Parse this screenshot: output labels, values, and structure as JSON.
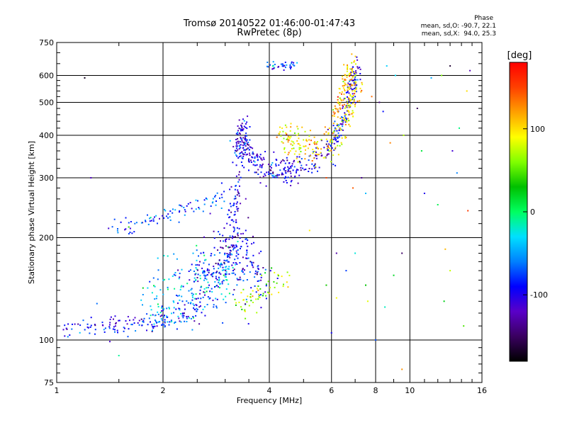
{
  "chart_data": {
    "type": "scatter",
    "title": "Tromsø 20140522 01:46:00-01:47:43",
    "subtitle": "RwPretec (8p)",
    "xlabel": "Frequency [MHz]",
    "ylabel": "Stationary phase Virtual Height [km]",
    "x_scale": "log",
    "y_scale": "log",
    "xlim": [
      1,
      16
    ],
    "ylim": [
      75,
      750
    ],
    "x_ticks": [
      1,
      2,
      4,
      6,
      8,
      10,
      16
    ],
    "y_ticks": [
      75,
      100,
      200,
      300,
      400,
      500,
      600,
      750
    ],
    "x_grid": [
      2,
      4,
      6,
      8,
      10
    ],
    "y_grid": [
      100,
      200,
      300,
      400,
      500,
      600
    ],
    "grid": true,
    "stats": {
      "header": "Phase",
      "o_mode": "mean, sd,O: -90.7, 22.1",
      "x_mode": "mean, sd,X:  94.0, 25.3"
    },
    "colorbar": {
      "label": "[deg]",
      "range": [
        -180,
        180
      ],
      "ticks": [
        100,
        0,
        -100
      ],
      "colors": [
        "#000000",
        "#3a0060",
        "#5a00c8",
        "#0000ff",
        "#0080ff",
        "#00e0ff",
        "#00ff60",
        "#00c000",
        "#80ff00",
        "#ffff00",
        "#ffa000",
        "#ff4000",
        "#ff0000"
      ]
    },
    "series": [
      {
        "type": "curve",
        "phase": -90,
        "points": [
          [
            1.0,
            108
          ],
          [
            1.1,
            109
          ],
          [
            1.2,
            110
          ],
          [
            1.3,
            109
          ],
          [
            1.4,
            110
          ],
          [
            1.5,
            111
          ],
          [
            1.6,
            110
          ],
          [
            1.7,
            112
          ],
          [
            1.8,
            112
          ],
          [
            1.9,
            113
          ],
          [
            2.0,
            114
          ],
          [
            2.1,
            116
          ],
          [
            2.2,
            119
          ],
          [
            2.3,
            121
          ],
          [
            2.4,
            123
          ],
          [
            2.5,
            126
          ]
        ],
        "count": 150,
        "spread": 0.035
      },
      {
        "type": "curve",
        "phase": -40,
        "points": [
          [
            1.8,
            128
          ],
          [
            2.0,
            132
          ],
          [
            2.2,
            138
          ],
          [
            2.4,
            143
          ],
          [
            2.6,
            148
          ],
          [
            2.8,
            152
          ],
          [
            3.0,
            158
          ],
          [
            3.2,
            165
          ]
        ],
        "count": 200,
        "spread": 0.12
      },
      {
        "type": "curve",
        "phase": -95,
        "points": [
          [
            2.4,
            140
          ],
          [
            2.6,
            147
          ],
          [
            2.8,
            158
          ],
          [
            3.0,
            172
          ],
          [
            3.2,
            188
          ],
          [
            3.4,
            175
          ],
          [
            3.6,
            160
          ],
          [
            3.8,
            150
          ]
        ],
        "count": 230,
        "spread": 0.12
      },
      {
        "type": "curve",
        "phase": -100,
        "points": [
          [
            3.1,
            170
          ],
          [
            3.15,
            200
          ],
          [
            3.2,
            240
          ],
          [
            3.25,
            280
          ],
          [
            3.3,
            330
          ],
          [
            3.35,
            390
          ],
          [
            3.4,
            420
          ]
        ],
        "count": 150,
        "spread": 0.06
      },
      {
        "type": "curve",
        "phase": -75,
        "points": [
          [
            1.4,
            212
          ],
          [
            1.6,
            216
          ],
          [
            1.8,
            222
          ],
          [
            2.0,
            232
          ],
          [
            2.2,
            240
          ],
          [
            2.4,
            245
          ],
          [
            2.6,
            250
          ],
          [
            2.8,
            258
          ],
          [
            3.0,
            268
          ]
        ],
        "count": 90,
        "spread": 0.03
      },
      {
        "type": "curve",
        "phase": -100,
        "points": [
          [
            3.2,
            400
          ],
          [
            3.4,
            370
          ],
          [
            3.6,
            345
          ],
          [
            3.8,
            330
          ],
          [
            4.0,
            318
          ],
          [
            4.3,
            312
          ],
          [
            4.6,
            318
          ],
          [
            5.0,
            330
          ],
          [
            5.5,
            345
          ],
          [
            6.0,
            370
          ],
          [
            6.3,
            410
          ],
          [
            6.6,
            470
          ],
          [
            6.9,
            560
          ],
          [
            7.1,
            640
          ]
        ],
        "count": 380,
        "spread": 0.05
      },
      {
        "type": "curve",
        "phase": 100,
        "points": [
          [
            4.3,
            395
          ],
          [
            4.6,
            385
          ],
          [
            5.0,
            375
          ],
          [
            5.5,
            365
          ],
          [
            6.0,
            375
          ],
          [
            6.5,
            420
          ],
          [
            6.8,
            480
          ],
          [
            7.0,
            540
          ],
          [
            7.1,
            620
          ]
        ],
        "count": 220,
        "spread": 0.06
      },
      {
        "type": "curve",
        "phase": 70,
        "points": [
          [
            3.2,
            125
          ],
          [
            3.5,
            132
          ],
          [
            3.8,
            140
          ],
          [
            4.2,
            150
          ],
          [
            4.6,
            150
          ]
        ],
        "count": 60,
        "spread": 0.05
      },
      {
        "type": "curve",
        "phase": -80,
        "points": [
          [
            3.9,
            645
          ],
          [
            4.2,
            640
          ],
          [
            4.5,
            638
          ],
          [
            4.9,
            645
          ]
        ],
        "count": 40,
        "spread": 0.015
      },
      {
        "type": "curve",
        "phase": 110,
        "points": [
          [
            6.1,
            440
          ],
          [
            6.3,
            500
          ],
          [
            6.5,
            560
          ],
          [
            6.7,
            610
          ],
          [
            6.9,
            650
          ]
        ],
        "count": 90,
        "spread": 0.05
      },
      {
        "type": "points",
        "phase": 0,
        "points": [
          [
            1.2,
            590
          ],
          [
            1.25,
            300
          ],
          [
            1.3,
            128
          ],
          [
            1.5,
            90
          ],
          [
            1.6,
            215
          ],
          [
            5.2,
            210
          ],
          [
            5.8,
            300
          ],
          [
            6.2,
            180
          ],
          [
            6.6,
            160
          ],
          [
            7.0,
            180
          ],
          [
            7.5,
            145
          ],
          [
            7.6,
            130
          ],
          [
            7.8,
            520
          ],
          [
            8.2,
            500
          ],
          [
            8.4,
            470
          ],
          [
            8.6,
            640
          ],
          [
            9.0,
            155
          ],
          [
            9.6,
            400
          ],
          [
            9.5,
            82
          ],
          [
            10.5,
            480
          ],
          [
            11.0,
            270
          ],
          [
            11.5,
            590
          ],
          [
            12.0,
            250
          ],
          [
            12.3,
            600
          ],
          [
            12.6,
            185
          ],
          [
            13.0,
            640
          ],
          [
            13.2,
            360
          ],
          [
            13.6,
            310
          ],
          [
            13.8,
            420
          ],
          [
            14.2,
            110
          ],
          [
            14.5,
            540
          ],
          [
            14.6,
            240
          ],
          [
            14.8,
            620
          ],
          [
            8.0,
            100
          ],
          [
            8.5,
            125
          ],
          [
            5.8,
            145
          ],
          [
            6.2,
            133
          ],
          [
            6.9,
            280
          ],
          [
            7.3,
            300
          ],
          [
            7.0,
            520
          ],
          [
            9.1,
            600
          ],
          [
            12.5,
            130
          ],
          [
            13.0,
            160
          ],
          [
            8.8,
            380
          ],
          [
            9.5,
            180
          ],
          [
            6.0,
            105
          ],
          [
            7.5,
            270
          ],
          [
            10.8,
            360
          ]
        ],
        "count": 0,
        "spread": 0.0
      }
    ]
  }
}
